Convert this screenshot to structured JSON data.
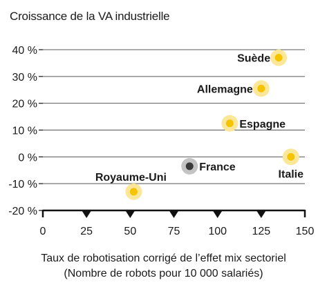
{
  "chart_data": {
    "type": "scatter",
    "title": "Croissance de la VA industrielle",
    "xlabel_line1": "Taux de robotisation corrigé de l’effet mix sectoriel",
    "xlabel_line2": "(Nombre de robots pour 10 000 salariés)",
    "xlim": [
      0,
      150
    ],
    "ylim": [
      -20,
      40
    ],
    "x_ticks": [
      "0",
      "25",
      "50",
      "75",
      "100",
      "125",
      "150"
    ],
    "y_ticks": [
      "40 %",
      "30 %",
      "20 %",
      "10 %",
      "0 %",
      "-10 %",
      "-20 %"
    ],
    "grid": true,
    "colors": {
      "highlight": "#f5c400",
      "highlight_halo": "#fbe79a",
      "reference": "#3a3a3a",
      "reference_halo": "#c4c4c4",
      "axis": "#111111",
      "grid": "#555555"
    },
    "points": [
      {
        "label": "Suède",
        "x": 135,
        "y": 37,
        "style": "highlight"
      },
      {
        "label": "Allemagne",
        "x": 125,
        "y": 25.5,
        "style": "highlight"
      },
      {
        "label": "Espagne",
        "x": 107,
        "y": 12.5,
        "style": "highlight"
      },
      {
        "label": "Italie",
        "x": 142,
        "y": 0,
        "style": "highlight"
      },
      {
        "label": "France",
        "x": 84,
        "y": -3.5,
        "style": "reference"
      },
      {
        "label": "Royaume-Uni",
        "x": 52,
        "y": -13,
        "style": "highlight"
      }
    ]
  }
}
